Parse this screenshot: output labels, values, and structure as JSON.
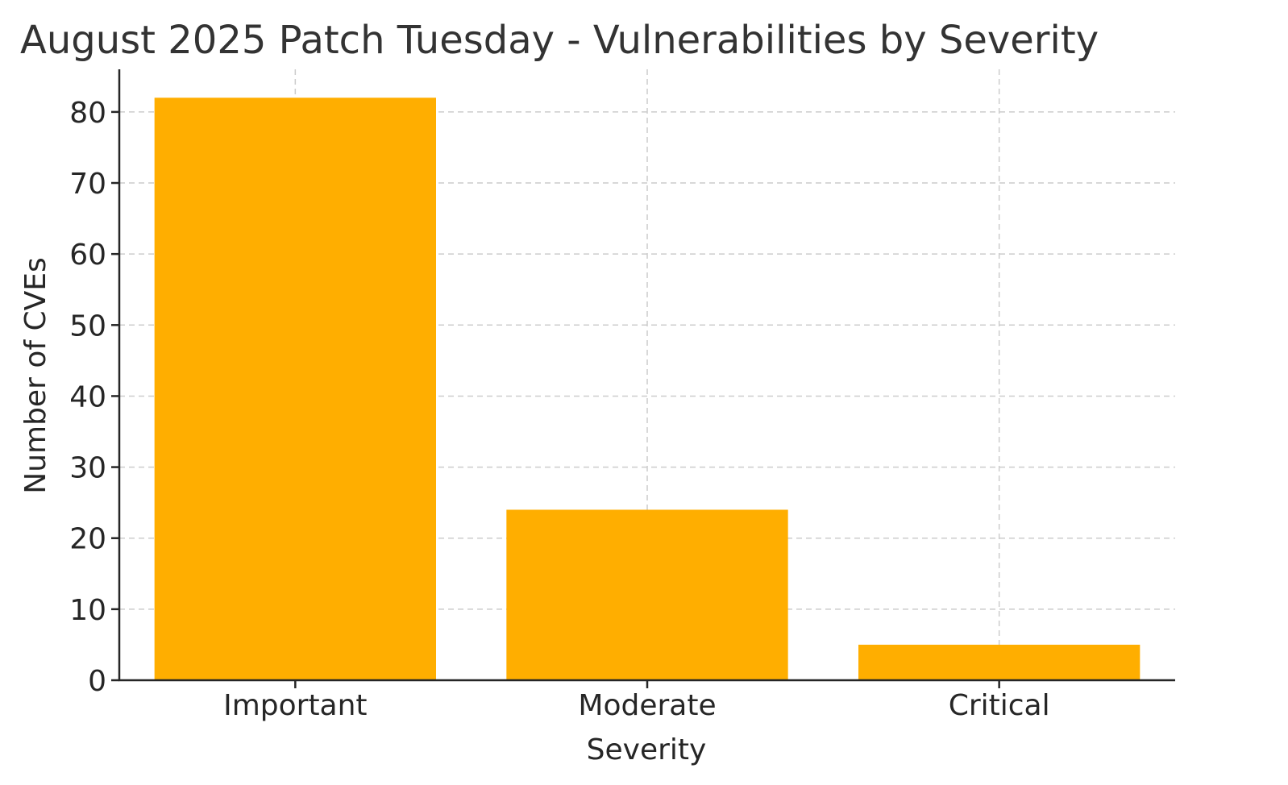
{
  "chart_data": {
    "type": "bar",
    "title": "August 2025 Patch Tuesday - Vulnerabilities by Severity",
    "xlabel": "Severity",
    "ylabel": "Number of CVEs",
    "categories": [
      "Important",
      "Moderate",
      "Critical"
    ],
    "values": [
      82,
      24,
      5
    ],
    "ylim": [
      0,
      86
    ],
    "yticks": [
      0,
      10,
      20,
      30,
      40,
      50,
      60,
      70,
      80
    ],
    "grid": true,
    "legend": "none",
    "bar_color": "#FFAE00"
  }
}
